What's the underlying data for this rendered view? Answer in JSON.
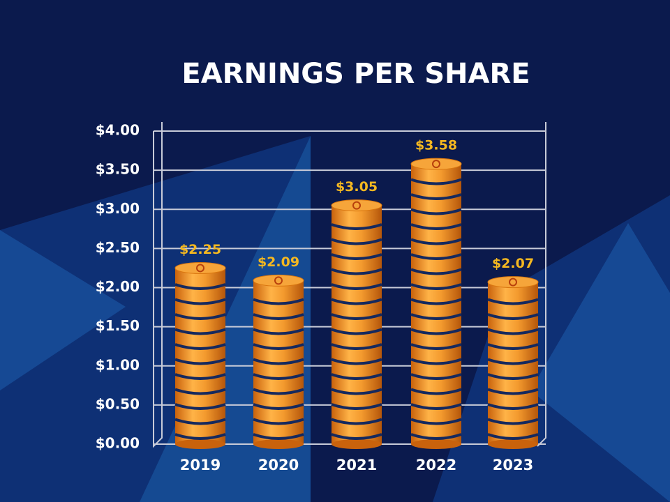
{
  "chart_data": {
    "type": "bar",
    "title": "EARNINGS PER SHARE",
    "categories": [
      "2019",
      "2020",
      "2021",
      "2022",
      "2023"
    ],
    "values": [
      2.25,
      2.09,
      3.05,
      3.58,
      2.07
    ],
    "value_labels": [
      "$2.25",
      "$2.09",
      "$3.05",
      "$3.58",
      "$2.07"
    ],
    "color": "#f39a2e",
    "ylim": [
      0,
      4
    ],
    "yticks": [
      {
        "value": 0,
        "label": "$0.00"
      },
      {
        "value": 0.5,
        "label": "$0.50"
      },
      {
        "value": 1,
        "label": "$1.00"
      },
      {
        "value": 1.5,
        "label": "$1.50"
      },
      {
        "value": 2,
        "label": "$2.00"
      },
      {
        "value": 2.5,
        "label": "$2.50"
      },
      {
        "value": 3,
        "label": "$3.00"
      },
      {
        "value": 3.5,
        "label": "$3.50"
      },
      {
        "value": 4,
        "label": "$4.00"
      }
    ],
    "grid": true
  }
}
